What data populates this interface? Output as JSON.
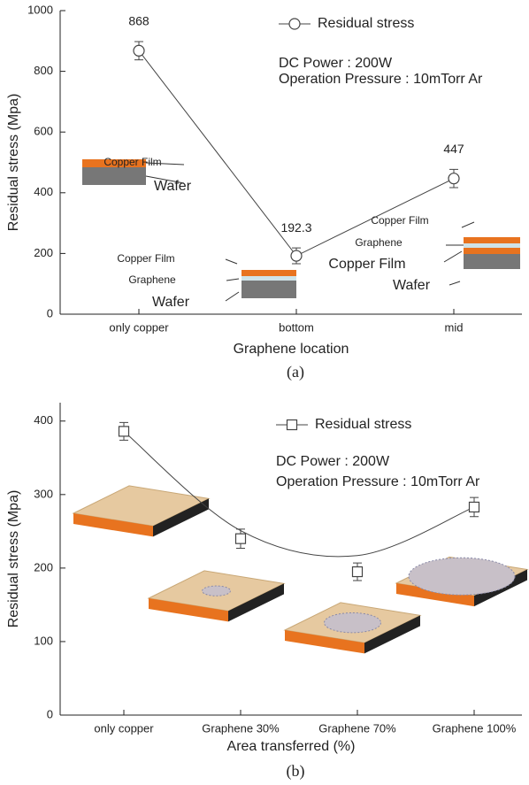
{
  "chart_data": [
    {
      "type": "line",
      "x_label": "Graphene location",
      "y_label": "Residual stress (Mpa)",
      "caption": "(a)",
      "categories": [
        "only copper",
        "bottom",
        "mid"
      ],
      "series": [
        {
          "name": "Residual stress",
          "color": "#444444",
          "marker": "circle",
          "connect": true,
          "values": [
            868,
            192.3,
            447
          ],
          "errors": [
            30,
            26,
            30
          ]
        }
      ],
      "data_labels": true,
      "ylim": [
        0,
        1000
      ],
      "yticks": [
        0,
        200,
        400,
        600,
        800,
        1000
      ],
      "annotations": [
        "DC Power : 200W",
        "Operation Pressure : 10mTorr Ar"
      ],
      "diagram_labels": [
        "Copper Film",
        "Wafer",
        "Copper Film",
        "Graphene",
        "Wafer",
        "Copper Film",
        "Graphene",
        "Copper Film",
        "Wafer"
      ]
    },
    {
      "type": "line",
      "x_label": "Area transferred (%)",
      "y_label": "Residual stress (Mpa)",
      "caption": "(b)",
      "categories": [
        "only copper",
        "Graphene 30%",
        "Graphene 70%",
        "Graphene 100%"
      ],
      "series": [
        {
          "name": "Residual stress",
          "color": "#444444",
          "marker": "square",
          "connect": false,
          "values": [
            386,
            240,
            195,
            283
          ],
          "errors": [
            12,
            13,
            12,
            13
          ],
          "fit": [
            386,
            251,
            217,
            283
          ]
        }
      ],
      "data_labels": false,
      "ylim": [
        0,
        425
      ],
      "yticks": [
        0,
        100,
        200,
        300,
        400
      ],
      "annotations": [
        "DC Power : 200W",
        "Operation Pressure : 10mTorr Ar"
      ]
    }
  ]
}
